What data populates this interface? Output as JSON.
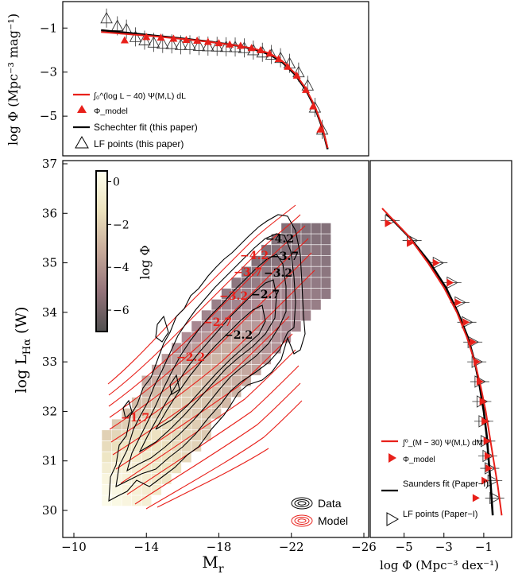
{
  "chart_data": [
    {
      "panel": "top",
      "type": "line",
      "ylabel": "log Φ (Mpc⁻³ mag⁻¹)",
      "y_ticks": [
        "−1",
        "−3",
        "−5"
      ],
      "xlim": [
        -10,
        -26
      ],
      "ylim": [
        -6.8,
        0.2
      ],
      "legend": {
        "placement": "bottom-left",
        "entries": [
          {
            "label": "∫₀^(log L − 40) Ψ(M,L) dL",
            "marker": "line",
            "color": "#e8201a"
          },
          {
            "label": "Φ_model",
            "marker": "filled-triangle",
            "color": "#e8201a"
          },
          {
            "label": "Schechter fit (this paper)",
            "marker": "line",
            "color": "#000000"
          },
          {
            "label": "LF points (this paper)",
            "marker": "open-triangle",
            "color": "#000000"
          }
        ]
      },
      "series": [
        {
          "name": "Schechter fit (this paper)",
          "color": "#000000",
          "x": [
            -11.5,
            -13,
            -14.5,
            -16,
            -17.5,
            -19,
            -20,
            -20.8,
            -21.5,
            -22.2,
            -22.8,
            -23.3,
            -23.7,
            -24.0
          ],
          "y": [
            -1.1,
            -1.22,
            -1.35,
            -1.48,
            -1.62,
            -1.8,
            -1.97,
            -2.2,
            -2.55,
            -3.1,
            -3.8,
            -4.6,
            -5.5,
            -6.5
          ]
        },
        {
          "name": "∫₀^(log L − 40) Ψ(M,L) dL",
          "color": "#e8201a",
          "x": [
            -11.5,
            -13,
            -14.5,
            -16,
            -17.5,
            -19,
            -20,
            -20.8,
            -21.5,
            -22.2,
            -22.8,
            -23.3,
            -23.7,
            -24.0
          ],
          "y": [
            -1.18,
            -1.28,
            -1.38,
            -1.5,
            -1.63,
            -1.79,
            -1.95,
            -2.15,
            -2.5,
            -3.05,
            -3.75,
            -4.55,
            -5.45,
            -6.45
          ]
        },
        {
          "name": "Φ_model",
          "color": "#e8201a",
          "x": [
            -12.8,
            -14.0,
            -14.8,
            -15.5,
            -16.2,
            -16.8,
            -17.4,
            -18.0,
            -18.6,
            -19.2,
            -19.8,
            -20.3,
            -20.8,
            -21.3,
            -21.8,
            -22.3,
            -22.8,
            -23.2,
            -23.6
          ],
          "y": [
            -1.55,
            -1.4,
            -1.43,
            -1.48,
            -1.53,
            -1.57,
            -1.62,
            -1.68,
            -1.74,
            -1.8,
            -1.9,
            -2.0,
            -2.15,
            -2.4,
            -2.75,
            -3.15,
            -3.8,
            -4.55,
            -5.6
          ]
        },
        {
          "name": "LF points (this paper)",
          "color": "#000000",
          "x": [
            -11.8,
            -12.4,
            -12.9,
            -13.4,
            -13.9,
            -14.4,
            -14.9,
            -15.4,
            -15.9,
            -16.4,
            -16.9,
            -17.4,
            -17.9,
            -18.4,
            -18.9,
            -19.4,
            -19.9,
            -20.4,
            -20.9,
            -21.4,
            -21.9,
            -22.4,
            -22.9,
            -23.3,
            -23.7
          ],
          "y": [
            -0.55,
            -0.9,
            -1.05,
            -1.4,
            -1.55,
            -1.65,
            -1.7,
            -1.72,
            -1.76,
            -1.76,
            -1.8,
            -1.82,
            -1.83,
            -1.85,
            -1.86,
            -1.9,
            -2.0,
            -2.1,
            -2.2,
            -2.35,
            -2.6,
            -3.0,
            -3.6,
            -4.6,
            -5.6
          ]
        }
      ]
    },
    {
      "panel": "main",
      "type": "heatmap",
      "xlabel": "M",
      "xlabel_sub": "r",
      "ylabel": "log L",
      "ylabel_sub": "Hα",
      "ylabel_unit": "(W)",
      "xlim": [
        -10,
        -26
      ],
      "ylim": [
        29.6,
        37
      ],
      "x_ticks": [
        "−10",
        "−14",
        "−18",
        "−22",
        "−26"
      ],
      "y_ticks": [
        "30",
        "31",
        "32",
        "33",
        "34",
        "35",
        "36",
        "37"
      ],
      "colorbar": {
        "label": "log Φ",
        "ticks": [
          "0",
          "−2",
          "−4",
          "−6"
        ],
        "range": [
          -7,
          0.5
        ]
      },
      "contour_labels_data": [
        "−4.2",
        "−3.7",
        "−3.2",
        "−2.7",
        "−2.2"
      ],
      "contour_labels_model": [
        "−4.2",
        "−3.7",
        "−3.2",
        "−2.7",
        "−2.2",
        "−1.7"
      ],
      "legend": {
        "placement": "bottom-right",
        "entries": [
          {
            "label": "Data",
            "color": "#000000"
          },
          {
            "label": "Model",
            "color": "#e8201a"
          }
        ]
      }
    },
    {
      "panel": "right",
      "type": "line",
      "xlabel": "log Φ (Mpc⁻³ dex⁻¹)",
      "x_ticks": [
        "−5",
        "−3",
        "−1"
      ],
      "xlim": [
        -6.7,
        0.4
      ],
      "ylim": [
        29.6,
        37
      ],
      "legend": {
        "placement": "bottom-right",
        "entries": [
          {
            "label": "∫⁰_(M − 30) Ψ(M,L) dM",
            "marker": "line",
            "color": "#e8201a"
          },
          {
            "label": "Φ_model",
            "marker": "filled-triangle-right",
            "color": "#e8201a"
          },
          {
            "label": "Saunders fit (Paper−I)",
            "marker": "line",
            "color": "#000000"
          },
          {
            "label": "LF points (Paper−I)",
            "marker": "open-triangle-right",
            "color": "#000000"
          }
        ]
      },
      "series": [
        {
          "name": "Saunders fit (Paper−I)",
          "color": "#000000",
          "x": [
            -5.9,
            -4.7,
            -3.7,
            -2.9,
            -2.3,
            -1.8,
            -1.45,
            -1.2,
            -1.0,
            -0.85,
            -0.75,
            -0.65,
            -0.55
          ],
          "y": [
            36.0,
            35.5,
            35.0,
            34.5,
            34.0,
            33.5,
            33.0,
            32.5,
            32.0,
            31.5,
            31.0,
            30.5,
            29.9
          ]
        },
        {
          "name": "∫⁰_(M − 30) Ψ(M,L) dM",
          "color": "#e8201a",
          "x": [
            -6.1,
            -4.8,
            -3.8,
            -3.0,
            -2.35,
            -1.85,
            -1.45,
            -1.15,
            -0.9,
            -0.7,
            -0.5,
            -0.3,
            -0.1
          ],
          "y": [
            36.1,
            35.55,
            35.0,
            34.5,
            34.0,
            33.5,
            33.0,
            32.5,
            32.0,
            31.5,
            31.0,
            30.5,
            29.9
          ]
        },
        {
          "name": "Φ_model",
          "color": "#e8201a",
          "x": [
            -5.8,
            -4.7,
            -3.4,
            -2.7,
            -2.3,
            -1.9,
            -1.55,
            -1.35,
            -1.2,
            -1.05,
            -0.95,
            -0.85,
            -0.8,
            -0.75,
            -0.95,
            -1.4
          ],
          "y": [
            35.8,
            35.4,
            35.0,
            34.6,
            34.2,
            33.8,
            33.4,
            33.0,
            32.6,
            32.2,
            31.8,
            31.4,
            31.1,
            30.85,
            30.6,
            30.25
          ]
        },
        {
          "name": "LF points (Paper−I)",
          "color": "#000000",
          "x": [
            -5.7,
            -4.6,
            -3.3,
            -2.6,
            -2.2,
            -1.85,
            -1.55,
            -1.35,
            -1.2,
            -1.1,
            -1.0,
            -0.9,
            -0.8,
            -0.7,
            -0.55,
            -0.45
          ],
          "y": [
            35.85,
            35.45,
            35.0,
            34.6,
            34.2,
            33.8,
            33.4,
            33.0,
            32.6,
            32.2,
            31.8,
            31.4,
            31.1,
            30.85,
            30.6,
            30.25
          ]
        }
      ]
    }
  ]
}
